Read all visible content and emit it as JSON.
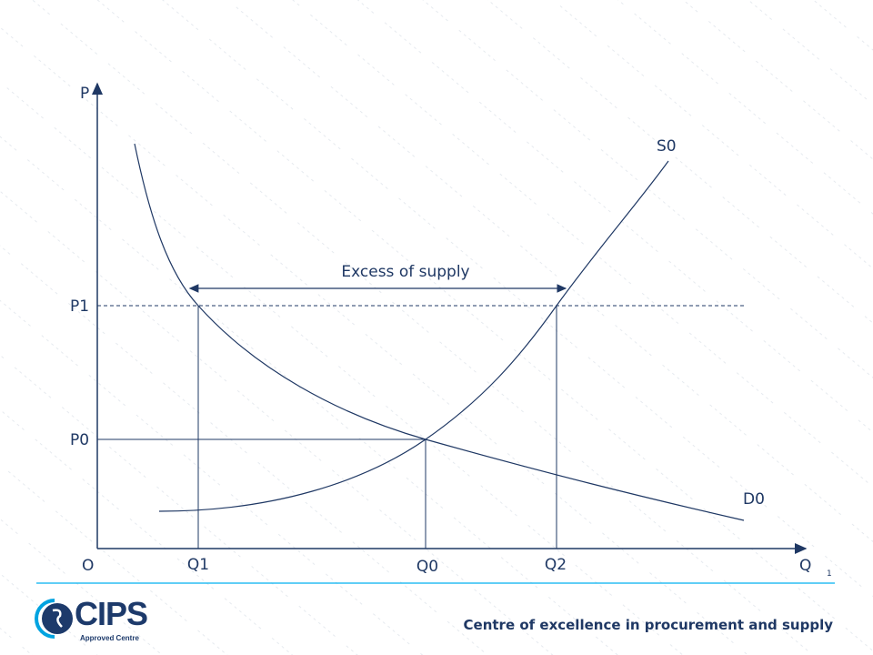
{
  "watermark": "Certsforce",
  "diagram": {
    "axis_y_label": "P",
    "axis_x_label": "Q",
    "origin_label": "O",
    "price_labels": {
      "p1": "P1",
      "p0": "P0"
    },
    "quantity_labels": {
      "q1": "Q1",
      "q0": "Q0",
      "q2": "Q2"
    },
    "supply_label": "S0",
    "demand_label": "D0",
    "annotation": "Excess of supply"
  },
  "footer": {
    "page_number": "1",
    "tagline": "Centre of excellence in procurement and supply",
    "logo_text": "CIPS",
    "logo_subtext": "Approved Centre"
  },
  "colors": {
    "line": "#1f3864",
    "accent": "#00b0f0",
    "watermark": "#d4dbe3"
  }
}
